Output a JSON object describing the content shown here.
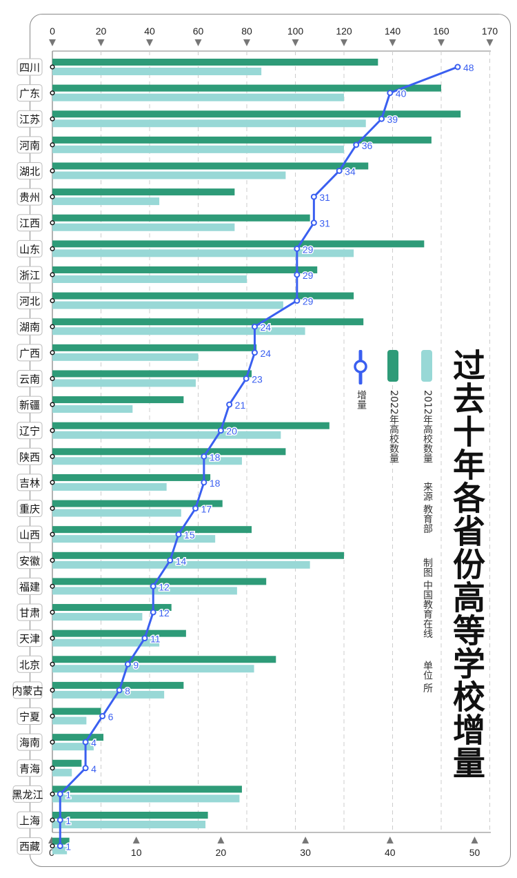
{
  "chart_data": {
    "type": "bar",
    "title": "过去十年各省份高等学校增量",
    "categories": [
      "四川",
      "广东",
      "江苏",
      "河南",
      "湖北",
      "贵州",
      "江西",
      "山东",
      "浙江",
      "河北",
      "湖南",
      "广西",
      "云南",
      "新疆",
      "辽宁",
      "陕西",
      "吉林",
      "重庆",
      "山西",
      "安徽",
      "福建",
      "甘肃",
      "天津",
      "北京",
      "内蒙古",
      "宁夏",
      "海南",
      "青海",
      "黑龙江",
      "上海",
      "西藏"
    ],
    "series": [
      {
        "name": "2022年高校数量",
        "color": "#2e9b78",
        "axis": "top",
        "values": [
          134,
          160,
          168,
          156,
          130,
          75,
          106,
          153,
          109,
          124,
          128,
          84,
          82,
          54,
          114,
          96,
          65,
          70,
          82,
          120,
          88,
          49,
          55,
          92,
          54,
          20,
          21,
          12,
          78,
          64,
          7
        ]
      },
      {
        "name": "2012年高校数量",
        "color": "#98d8d6",
        "axis": "top",
        "values": [
          86,
          120,
          129,
          120,
          96,
          44,
          75,
          124,
          80,
          95,
          104,
          60,
          59,
          33,
          94,
          78,
          47,
          53,
          67,
          106,
          76,
          37,
          44,
          83,
          46,
          14,
          17,
          8,
          77,
          63,
          6
        ]
      },
      {
        "name": "增量",
        "type": "line",
        "color": "#3a5ff0",
        "axis": "bottom",
        "values": [
          48,
          40,
          39,
          36,
          34,
          31,
          31,
          29,
          29,
          29,
          24,
          24,
          23,
          21,
          20,
          18,
          18,
          17,
          15,
          14,
          12,
          12,
          11,
          9,
          8,
          6,
          4,
          4,
          1,
          1,
          1
        ]
      }
    ],
    "top_axis": {
      "ticks": [
        "0",
        "20",
        "40",
        "60",
        "80",
        "100",
        "120",
        "140",
        "160",
        "170"
      ]
    },
    "bottom_axis": {
      "ticks": [
        0,
        10,
        20,
        30,
        40,
        50
      ],
      "range": [
        0,
        50
      ]
    },
    "grid": true,
    "legend_placement": "right"
  },
  "notes": {
    "source": "来源  教育部",
    "maker": "制图  中国教育在线",
    "unit": "单位  所"
  }
}
